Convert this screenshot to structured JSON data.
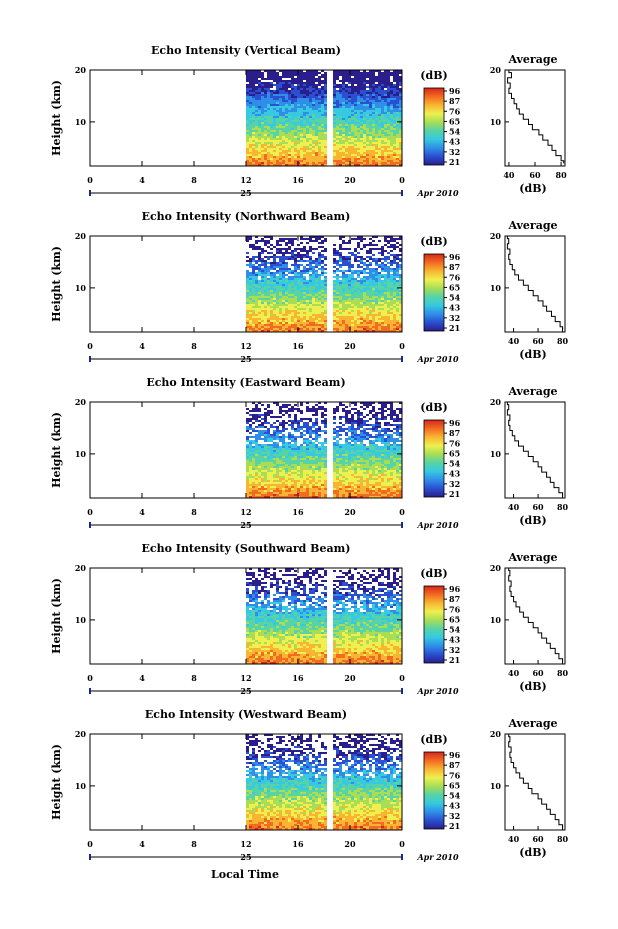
{
  "figure": {
    "xlabel": "Local Time",
    "date_label": "Apr 2010",
    "day_label": "25",
    "colorbar_unit": "(dB)",
    "avg_title": "Average",
    "avg_xlabel": "(dB)",
    "ylabel": "Height (km)"
  },
  "chart_data": [
    {
      "type": "heatmap",
      "title": "Echo Intensity (Vertical Beam)",
      "xlabel": "Local Time",
      "ylabel": "Height (km)",
      "x_ticks": [
        "0",
        "4",
        "8",
        "12",
        "16",
        "20",
        "0"
      ],
      "xlim": [
        0,
        24
      ],
      "ylim": [
        1.5,
        20
      ],
      "y_ticks": [
        "10",
        "20"
      ],
      "data_range_hours": [
        12,
        24
      ],
      "gaps_hours": [
        [
          17.8,
          18.0
        ],
        [
          18.2,
          18.5
        ]
      ],
      "colorbar": {
        "unit": "(dB)",
        "ticks": [
          "96",
          "87",
          "76",
          "65",
          "54",
          "43",
          "32",
          "21"
        ]
      },
      "average": {
        "title": "Average",
        "xlabel": "(dB)",
        "xlim": [
          37,
          83
        ],
        "x_ticks": [
          "40",
          "60",
          "80"
        ],
        "y_ticks": [
          "10",
          "20"
        ],
        "profile": [
          [
            82,
            2
          ],
          [
            80,
            3
          ],
          [
            76,
            4
          ],
          [
            73,
            5
          ],
          [
            70,
            6
          ],
          [
            66,
            7
          ],
          [
            63,
            8
          ],
          [
            58,
            9
          ],
          [
            55,
            10
          ],
          [
            51,
            11
          ],
          [
            48,
            12
          ],
          [
            46,
            13
          ],
          [
            44,
            14
          ],
          [
            42,
            15
          ],
          [
            40,
            16
          ],
          [
            41,
            17
          ],
          [
            39,
            18
          ],
          [
            42,
            19
          ],
          [
            40,
            20
          ]
        ]
      }
    },
    {
      "type": "heatmap",
      "title": "Echo Intensity (Northward Beam)",
      "xlabel": "Local Time",
      "ylabel": "Height (km)",
      "x_ticks": [
        "0",
        "4",
        "8",
        "12",
        "16",
        "20",
        "0"
      ],
      "xlim": [
        0,
        24
      ],
      "ylim": [
        1.5,
        20
      ],
      "y_ticks": [
        "10",
        "20"
      ],
      "data_range_hours": [
        12,
        24
      ],
      "gaps_hours": [
        [
          17.8,
          18.0
        ],
        [
          18.2,
          18.5
        ]
      ],
      "colorbar": {
        "unit": "(dB)",
        "ticks": [
          "96",
          "87",
          "76",
          "65",
          "54",
          "43",
          "32",
          "21"
        ]
      },
      "average": {
        "title": "Average",
        "xlabel": "(dB)",
        "xlim": [
          33,
          82
        ],
        "x_ticks": [
          "40",
          "60",
          "80"
        ],
        "y_ticks": [
          "10",
          "20"
        ],
        "profile": [
          [
            80,
            2
          ],
          [
            78,
            3
          ],
          [
            74,
            4
          ],
          [
            71,
            5
          ],
          [
            67,
            6
          ],
          [
            64,
            7
          ],
          [
            60,
            8
          ],
          [
            56,
            9
          ],
          [
            52,
            10
          ],
          [
            48,
            11
          ],
          [
            44,
            12
          ],
          [
            41,
            13
          ],
          [
            39,
            14
          ],
          [
            37,
            15
          ],
          [
            36,
            16
          ],
          [
            37,
            17
          ],
          [
            35,
            18
          ],
          [
            36,
            19
          ],
          [
            35,
            20
          ]
        ]
      }
    },
    {
      "type": "heatmap",
      "title": "Echo Intensity (Eastward Beam)",
      "xlabel": "Local Time",
      "ylabel": "Height (km)",
      "x_ticks": [
        "0",
        "4",
        "8",
        "12",
        "16",
        "20",
        "0"
      ],
      "xlim": [
        0,
        24
      ],
      "ylim": [
        1.5,
        20
      ],
      "y_ticks": [
        "10",
        "20"
      ],
      "data_range_hours": [
        12,
        24
      ],
      "gaps_hours": [
        [
          17.8,
          18.0
        ],
        [
          18.2,
          18.5
        ]
      ],
      "colorbar": {
        "unit": "(dB)",
        "ticks": [
          "96",
          "87",
          "76",
          "65",
          "54",
          "43",
          "32",
          "21"
        ]
      },
      "average": {
        "title": "Average",
        "xlabel": "(dB)",
        "xlim": [
          33,
          82
        ],
        "x_ticks": [
          "40",
          "60",
          "80"
        ],
        "y_ticks": [
          "10",
          "20"
        ],
        "profile": [
          [
            80,
            2
          ],
          [
            77,
            3
          ],
          [
            73,
            4
          ],
          [
            70,
            5
          ],
          [
            67,
            6
          ],
          [
            63,
            7
          ],
          [
            60,
            8
          ],
          [
            56,
            9
          ],
          [
            52,
            10
          ],
          [
            48,
            11
          ],
          [
            44,
            12
          ],
          [
            41,
            13
          ],
          [
            39,
            14
          ],
          [
            37,
            15
          ],
          [
            36,
            16
          ],
          [
            37,
            17
          ],
          [
            35,
            18
          ],
          [
            36,
            19
          ],
          [
            35,
            20
          ]
        ]
      }
    },
    {
      "type": "heatmap",
      "title": "Echo Intensity (Southward Beam)",
      "xlabel": "Local Time",
      "ylabel": "Height (km)",
      "x_ticks": [
        "0",
        "4",
        "8",
        "12",
        "16",
        "20",
        "0"
      ],
      "xlim": [
        0,
        24
      ],
      "ylim": [
        1.5,
        20
      ],
      "y_ticks": [
        "10",
        "20"
      ],
      "data_range_hours": [
        12,
        24
      ],
      "gaps_hours": [
        [
          17.8,
          18.0
        ],
        [
          18.2,
          18.5
        ]
      ],
      "colorbar": {
        "unit": "(dB)",
        "ticks": [
          "96",
          "87",
          "76",
          "65",
          "54",
          "43",
          "32",
          "21"
        ]
      },
      "average": {
        "title": "Average",
        "xlabel": "(dB)",
        "xlim": [
          33,
          82
        ],
        "x_ticks": [
          "40",
          "60",
          "80"
        ],
        "y_ticks": [
          "10",
          "20"
        ],
        "profile": [
          [
            80,
            2
          ],
          [
            77,
            3
          ],
          [
            74,
            4
          ],
          [
            70,
            5
          ],
          [
            67,
            6
          ],
          [
            63,
            7
          ],
          [
            60,
            8
          ],
          [
            56,
            9
          ],
          [
            52,
            10
          ],
          [
            48,
            11
          ],
          [
            45,
            12
          ],
          [
            42,
            13
          ],
          [
            40,
            14
          ],
          [
            38,
            15
          ],
          [
            37,
            16
          ],
          [
            38,
            17
          ],
          [
            36,
            18
          ],
          [
            37,
            19
          ],
          [
            36,
            20
          ]
        ]
      }
    },
    {
      "type": "heatmap",
      "title": "Echo Intensity (Westward Beam)",
      "xlabel": "Local Time",
      "ylabel": "Height (km)",
      "x_ticks": [
        "0",
        "4",
        "8",
        "12",
        "16",
        "20",
        "0"
      ],
      "xlim": [
        0,
        24
      ],
      "ylim": [
        1.5,
        20
      ],
      "y_ticks": [
        "10",
        "20"
      ],
      "data_range_hours": [
        12,
        24
      ],
      "gaps_hours": [
        [
          17.8,
          18.0
        ],
        [
          18.2,
          18.5
        ]
      ],
      "colorbar": {
        "unit": "(dB)",
        "ticks": [
          "96",
          "87",
          "76",
          "65",
          "54",
          "43",
          "32",
          "21"
        ]
      },
      "average": {
        "title": "Average",
        "xlabel": "(dB)",
        "xlim": [
          33,
          82
        ],
        "x_ticks": [
          "40",
          "60",
          "80"
        ],
        "y_ticks": [
          "10",
          "20"
        ],
        "profile": [
          [
            80,
            2
          ],
          [
            77,
            3
          ],
          [
            74,
            4
          ],
          [
            70,
            5
          ],
          [
            67,
            6
          ],
          [
            63,
            7
          ],
          [
            60,
            8
          ],
          [
            55,
            9
          ],
          [
            52,
            10
          ],
          [
            48,
            11
          ],
          [
            45,
            12
          ],
          [
            42,
            13
          ],
          [
            40,
            14
          ],
          [
            38,
            15
          ],
          [
            37,
            16
          ],
          [
            38,
            17
          ],
          [
            36,
            18
          ],
          [
            37,
            19
          ],
          [
            36,
            20
          ]
        ]
      }
    }
  ],
  "colors": {
    "colormap": [
      "#2a1e8c",
      "#2a4fd0",
      "#2f8fe8",
      "#36c9e0",
      "#57d3a6",
      "#a8dd55",
      "#eef050",
      "#f9b531",
      "#f26b22",
      "#d6281c"
    ],
    "axis": "#000000",
    "date_marker": "#1a2a8c"
  }
}
